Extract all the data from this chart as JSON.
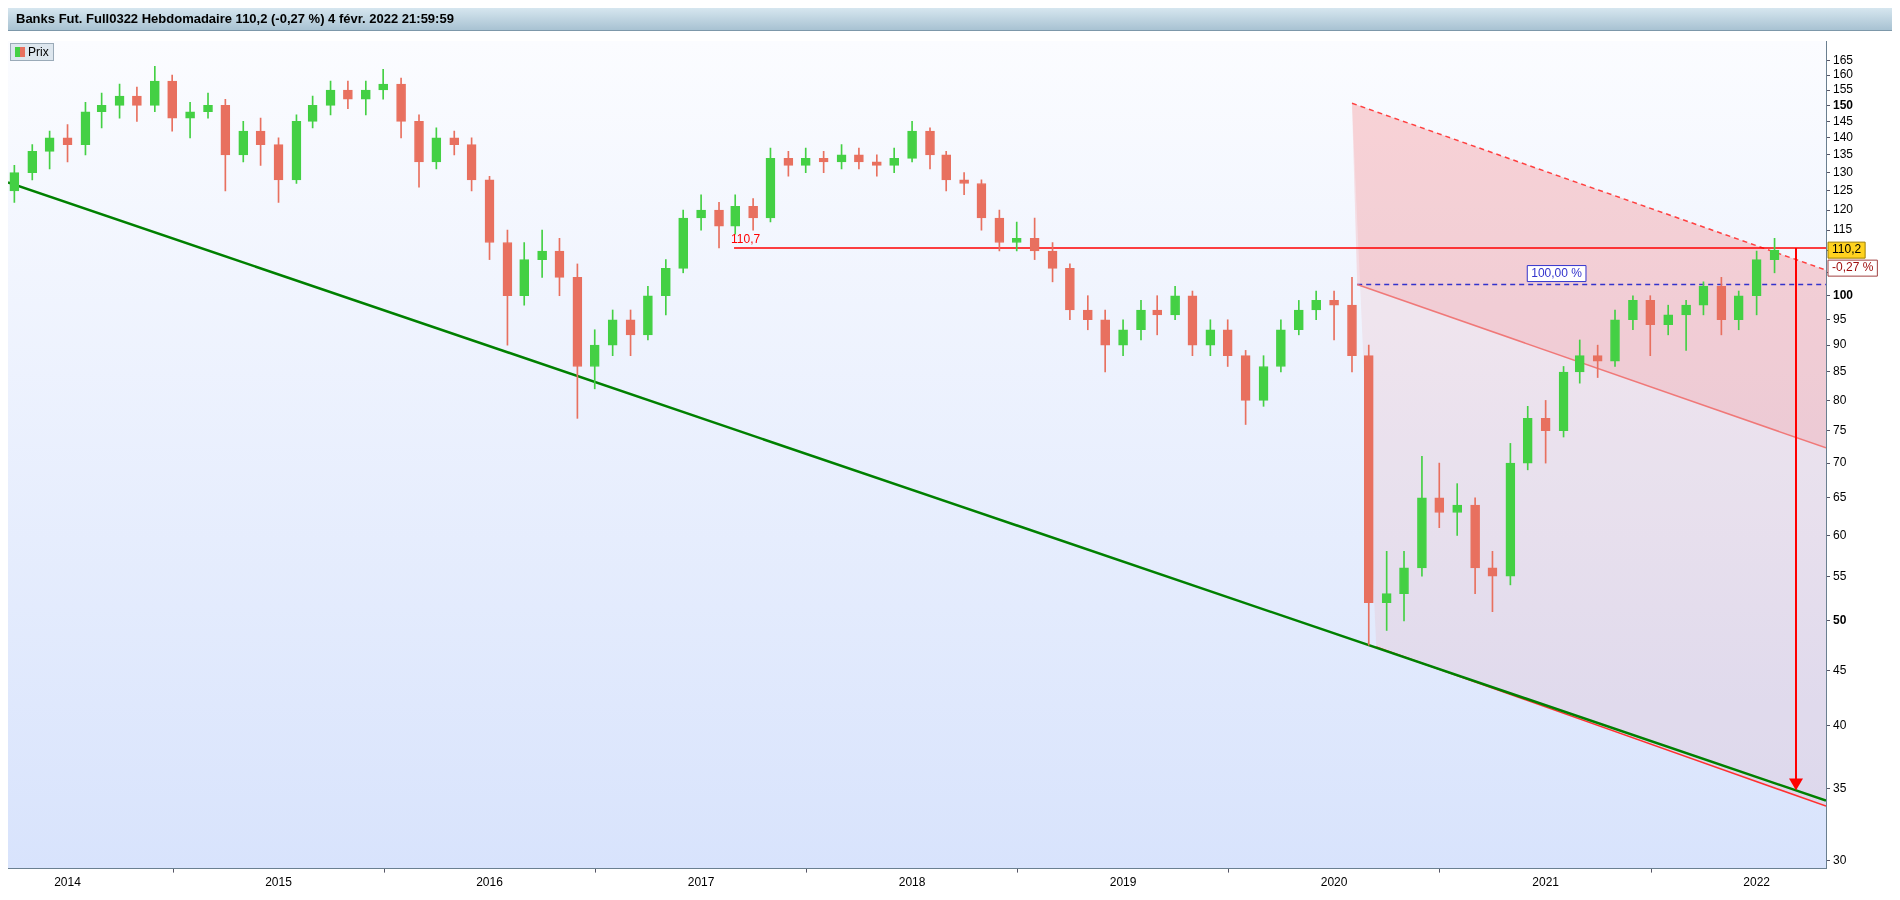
{
  "chart_data": {
    "type": "candlestick",
    "title": "Banks Fut. Full0322 Hebdomadaire 110,2 (-0,27 %) 4 févr. 2022 21:59:59",
    "legend": "top left",
    "xlim": [
      "2013-09-20",
      "2022-05-01"
    ],
    "xticks": [
      {
        "value": "2014-01-01",
        "label": "2014"
      },
      {
        "value": "2015-01-01",
        "label": "2015"
      },
      {
        "value": "2016-01-01",
        "label": "2016"
      },
      {
        "value": "2017-01-01",
        "label": "2017"
      },
      {
        "value": "2018-01-01",
        "label": "2018"
      },
      {
        "value": "2019-01-01",
        "label": "2019"
      },
      {
        "value": "2020-01-01",
        "label": "2020"
      },
      {
        "value": "2021-01-01",
        "label": "2021"
      },
      {
        "value": "2022-01-01",
        "label": "2022"
      }
    ],
    "log": true,
    "ylim": [
      29.5,
      172
    ],
    "yticks": [
      30,
      35,
      40,
      45,
      50,
      55,
      60,
      65,
      70,
      75,
      80,
      85,
      90,
      95,
      100,
      {
        "value": 105,
        "label": null
      },
      {
        "value": 110,
        "label": null
      },
      115,
      120,
      125,
      130,
      135,
      140,
      145,
      150,
      155,
      160,
      165
    ],
    "annotations": [
      {
        "text": "110,7",
        "x": "2017-02-01",
        "y": 110.7
      },
      {
        "text": "100,00 %",
        "x": "2021-01-20",
        "y": 102.4
      },
      "110,2",
      "-0,27 %"
    ],
    "series": [
      {
        "name": "Prix",
        "x": [
          "2013-10",
          "2013-11",
          "2013-12",
          "2014-01",
          "2014-02",
          "2014-03",
          "2014-04",
          "2014-05",
          "2014-06",
          "2014-07",
          "2014-08",
          "2014-09",
          "2014-10",
          "2014-11",
          "2014-12",
          "2015-01",
          "2015-02",
          "2015-03",
          "2015-04",
          "2015-05",
          "2015-06",
          "2015-07",
          "2015-08",
          "2015-09",
          "2015-10",
          "2015-11",
          "2015-12",
          "2016-01",
          "2016-02",
          "2016-03",
          "2016-04",
          "2016-05",
          "2016-06",
          "2016-07",
          "2016-08",
          "2016-09",
          "2016-10",
          "2016-11",
          "2016-12",
          "2017-01",
          "2017-02",
          "2017-03",
          "2017-04",
          "2017-05",
          "2017-06",
          "2017-07",
          "2017-08",
          "2017-09",
          "2017-10",
          "2017-11",
          "2017-12",
          "2018-01",
          "2018-02",
          "2018-03",
          "2018-04",
          "2018-05",
          "2018-06",
          "2018-07",
          "2018-08",
          "2018-09",
          "2018-10",
          "2018-11",
          "2018-12",
          "2019-01",
          "2019-02",
          "2019-03",
          "2019-04",
          "2019-05",
          "2019-06",
          "2019-07",
          "2019-08",
          "2019-09",
          "2019-10",
          "2019-11",
          "2019-12",
          "2020-01",
          "2020-02",
          "2020-03",
          "2020-04",
          "2020-05",
          "2020-06",
          "2020-07",
          "2020-08",
          "2020-09",
          "2020-10",
          "2020-11",
          "2020-12",
          "2021-01",
          "2021-02",
          "2021-03",
          "2021-04",
          "2021-05",
          "2021-06",
          "2021-07",
          "2021-08",
          "2021-09",
          "2021-10",
          "2021-11",
          "2021-12",
          "2022-01",
          "2022-02"
        ],
        "ohlc": [
          [
            125,
            132,
            122,
            130
          ],
          [
            130,
            138,
            128,
            136
          ],
          [
            136,
            142,
            131,
            140
          ],
          [
            140,
            144,
            133,
            138
          ],
          [
            138,
            151,
            135,
            148
          ],
          [
            148,
            154,
            143,
            150
          ],
          [
            150,
            157,
            146,
            153
          ],
          [
            153,
            156,
            145,
            150
          ],
          [
            150,
            163,
            148,
            158
          ],
          [
            158,
            160,
            142,
            146
          ],
          [
            146,
            151,
            140,
            148
          ],
          [
            148,
            154,
            146,
            150
          ],
          [
            150,
            152,
            125,
            135
          ],
          [
            135,
            145,
            133,
            142
          ],
          [
            142,
            146,
            132,
            138
          ],
          [
            138,
            140,
            122,
            128
          ],
          [
            128,
            147,
            127,
            145
          ],
          [
            145,
            153,
            143,
            150
          ],
          [
            150,
            158,
            147,
            155
          ],
          [
            155,
            158,
            149,
            152
          ],
          [
            152,
            158,
            147,
            155
          ],
          [
            155,
            162,
            152,
            157
          ],
          [
            157,
            159,
            140,
            145
          ],
          [
            145,
            147,
            126,
            133
          ],
          [
            133,
            143,
            131,
            140
          ],
          [
            140,
            142,
            135,
            138
          ],
          [
            138,
            140,
            125,
            128
          ],
          [
            128,
            129,
            108,
            112
          ],
          [
            112,
            115,
            90,
            100
          ],
          [
            100,
            112,
            98,
            108
          ],
          [
            108,
            115,
            104,
            110
          ],
          [
            110,
            113,
            100,
            104
          ],
          [
            104,
            107,
            77,
            86
          ],
          [
            86,
            93,
            82,
            90
          ],
          [
            90,
            97,
            88,
            95
          ],
          [
            95,
            97,
            88,
            92
          ],
          [
            92,
            102,
            91,
            100
          ],
          [
            100,
            108,
            96,
            106
          ],
          [
            106,
            120,
            105,
            118
          ],
          [
            118,
            124,
            115,
            120
          ],
          [
            120,
            122,
            110.7,
            116
          ],
          [
            116,
            124,
            114,
            121
          ],
          [
            121,
            123,
            115,
            118
          ],
          [
            118,
            137,
            117,
            134
          ],
          [
            134,
            136,
            129,
            132
          ],
          [
            132,
            137,
            130,
            134
          ],
          [
            134,
            136,
            130,
            133
          ],
          [
            133,
            138,
            131,
            135
          ],
          [
            135,
            137,
            131,
            133
          ],
          [
            133,
            135,
            129,
            132
          ],
          [
            132,
            137,
            130,
            134
          ],
          [
            134,
            145,
            133,
            142
          ],
          [
            142,
            143,
            131,
            135
          ],
          [
            135,
            136,
            125,
            128
          ],
          [
            128,
            130,
            124,
            127
          ],
          [
            127,
            128,
            115,
            118
          ],
          [
            118,
            120,
            110,
            112
          ],
          [
            112,
            117,
            110,
            113
          ],
          [
            113,
            118,
            108,
            110
          ],
          [
            110,
            112,
            103,
            106
          ],
          [
            106,
            107,
            95,
            97
          ],
          [
            97,
            100,
            93,
            95
          ],
          [
            95,
            97,
            85,
            90
          ],
          [
            90,
            95,
            88,
            93
          ],
          [
            93,
            99,
            91,
            97
          ],
          [
            97,
            100,
            92,
            96
          ],
          [
            96,
            102,
            95,
            100
          ],
          [
            100,
            101,
            88,
            90
          ],
          [
            90,
            95,
            88,
            93
          ],
          [
            93,
            95,
            86,
            88
          ],
          [
            88,
            89,
            76,
            80
          ],
          [
            80,
            88,
            79,
            86
          ],
          [
            86,
            95,
            85,
            93
          ],
          [
            93,
            99,
            92,
            97
          ],
          [
            97,
            101,
            95,
            99
          ],
          [
            99,
            101,
            91,
            98
          ],
          [
            98,
            104,
            85,
            88
          ],
          [
            88,
            90,
            47.5,
            52
          ],
          [
            52,
            58,
            49,
            53
          ],
          [
            53,
            58,
            50,
            56
          ],
          [
            56,
            71,
            55,
            65
          ],
          [
            65,
            70,
            61,
            63
          ],
          [
            63,
            67,
            60,
            64
          ],
          [
            64,
            65,
            53,
            56
          ],
          [
            56,
            58,
            51,
            55
          ],
          [
            55,
            73,
            54,
            70
          ],
          [
            70,
            79,
            69,
            77
          ],
          [
            77,
            80,
            70,
            75
          ],
          [
            75,
            86,
            74,
            85
          ],
          [
            85,
            91,
            83,
            88
          ],
          [
            88,
            90,
            84,
            87
          ],
          [
            87,
            97,
            86,
            95
          ],
          [
            95,
            100,
            93,
            99
          ],
          [
            99,
            100,
            88,
            94
          ],
          [
            94,
            98,
            92,
            96
          ],
          [
            96,
            99,
            89,
            98
          ],
          [
            98,
            103,
            96,
            102
          ],
          [
            102,
            104,
            92,
            95
          ],
          [
            95,
            101,
            93,
            100
          ],
          [
            100,
            110,
            96,
            108
          ],
          [
            108,
            113,
            105,
            110.2
          ]
        ],
        "colors": [
          "#44d044",
          "#44d044",
          "#44d044",
          "#e8705f",
          "#44d044",
          "#44d044",
          "#44d044",
          "#e8705f",
          "#44d044",
          "#e8705f",
          "#44d044",
          "#44d044",
          "#e8705f",
          "#44d044",
          "#e8705f",
          "#e8705f",
          "#44d044",
          "#44d044",
          "#44d044",
          "#e8705f",
          "#44d044",
          "#44d044",
          "#e8705f",
          "#e8705f",
          "#44d044",
          "#e8705f",
          "#e8705f",
          "#e8705f",
          "#e8705f",
          "#44d044",
          "#44d044",
          "#e8705f",
          "#e8705f",
          "#44d044",
          "#44d044",
          "#e8705f",
          "#44d044",
          "#44d044",
          "#44d044",
          "#44d044",
          "#e8705f",
          "#44d044",
          "#e8705f",
          "#44d044",
          "#e8705f",
          "#44d044",
          "#e8705f",
          "#44d044",
          "#e8705f",
          "#e8705f",
          "#44d044",
          "#44d044",
          "#e8705f",
          "#e8705f",
          "#e8705f",
          "#e8705f",
          "#e8705f",
          "#44d044",
          "#e8705f",
          "#e8705f",
          "#e8705f",
          "#e8705f",
          "#e8705f",
          "#44d044",
          "#44d044",
          "#e8705f",
          "#44d044",
          "#e8705f",
          "#44d044",
          "#e8705f",
          "#e8705f",
          "#44d044",
          "#44d044",
          "#44d044",
          "#44d044",
          "#e8705f",
          "#e8705f",
          "#e8705f",
          "#44d044",
          "#44d044",
          "#44d044",
          "#e8705f",
          "#44d044",
          "#e8705f",
          "#e8705f",
          "#44d044",
          "#44d044",
          "#e8705f",
          "#44d044",
          "#44d044",
          "#e8705f",
          "#44d044",
          "#44d044",
          "#e8705f",
          "#44d044",
          "#44d044",
          "#44d044",
          "#e8705f",
          "#44d044",
          "#44d044",
          "#44d044"
        ]
      },
      {
        "type": "line",
        "color": "#008000",
        "x": [
          "2013-09-20",
          "2022-05-01"
        ],
        "values": [
          127.3,
          34.1
        ]
      },
      {
        "type": "line",
        "color": "#ff0000",
        "x": [
          "2017-02-27",
          "2022-05-01"
        ],
        "values": [
          110.7,
          110.7
        ]
      },
      {
        "type": "line",
        "color": "#ff4040",
        "line_style": "dashed",
        "x": [
          "2020-02-01",
          "2022-05-01"
        ],
        "values": [
          150.7,
          105.6
        ]
      },
      {
        "type": "line",
        "color": "#f07878",
        "x": [
          "2020-02-10",
          "2022-05-01"
        ],
        "values": [
          102.4,
          72.3
        ]
      },
      {
        "type": "line",
        "color": "#ff3030",
        "x": [
          "2020-03-14",
          "2022-05-01"
        ],
        "values": [
          47.3,
          33.7
        ]
      },
      {
        "type": "line",
        "color": "#3333cc",
        "line_style": "dashed",
        "x": [
          "2020-02-10",
          "2022-05-01"
        ],
        "values": [
          102.4,
          102.4
        ]
      }
    ]
  }
}
